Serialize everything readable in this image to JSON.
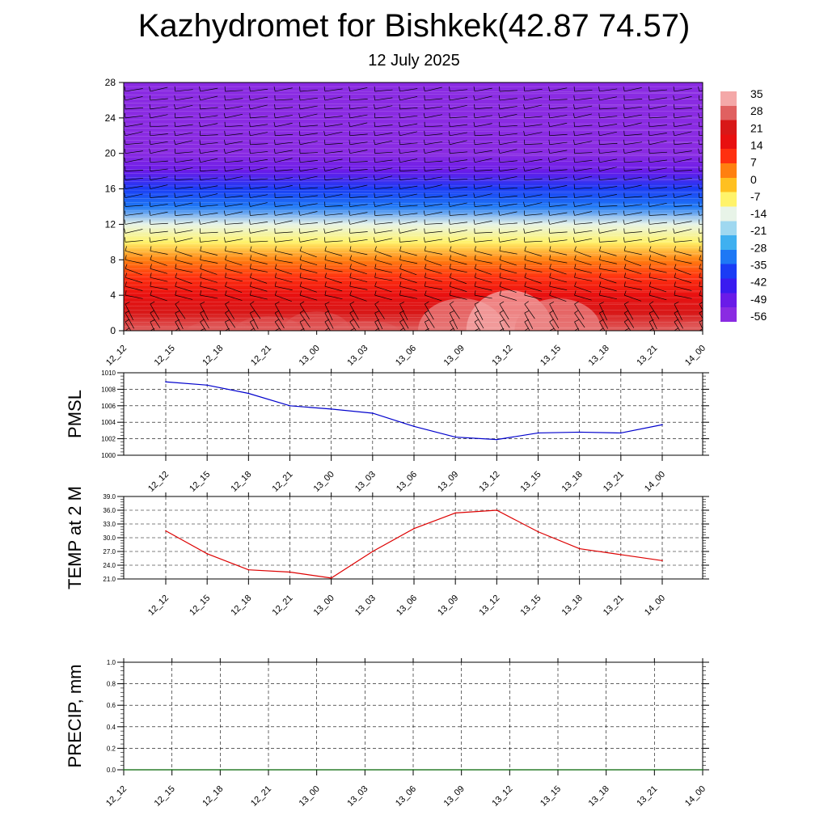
{
  "title": "Kazhydromet for Bishkek(42.87 74.57)",
  "subtitle": "12 July 2025",
  "chart_data": [
    {
      "type": "heatmap",
      "title": "",
      "x": [
        "12_12",
        "12_15",
        "12_18",
        "12_21",
        "13_00",
        "13_03",
        "13_06",
        "13_09",
        "13_12",
        "13_15",
        "13_18",
        "13_21",
        "14_00"
      ],
      "y_ticks": [
        0,
        4,
        8,
        12,
        16,
        20,
        24,
        28
      ],
      "ylim": [
        0,
        28
      ],
      "colorbar_labels": [
        "35",
        "28",
        "21",
        "14",
        "7",
        "0",
        "-7",
        "-14",
        "-21",
        "-28",
        "-35",
        "-42",
        "-49",
        "-56"
      ],
      "colorbar_range": [
        -60,
        38
      ],
      "temperature_profile": {
        "levels_km": [
          0,
          2,
          4,
          6,
          8,
          10,
          12,
          14,
          16,
          18,
          20,
          22,
          24,
          26,
          28
        ],
        "temp_c": [
          28,
          24,
          18,
          10,
          4,
          -5,
          -15,
          -30,
          -40,
          -48,
          -56,
          -60,
          -60,
          -58,
          -58
        ]
      },
      "surface_warming": [
        0,
        -1,
        -2,
        -3,
        -4,
        -2,
        1,
        4,
        5,
        4,
        1,
        -1,
        -2
      ],
      "wind_barbs": true
    },
    {
      "type": "line",
      "ylabel": "PMSL",
      "x": [
        "12_12",
        "12_15",
        "12_18",
        "12_21",
        "13_00",
        "13_03",
        "13_06",
        "13_09",
        "13_12",
        "13_15",
        "13_18",
        "13_21",
        "14_00"
      ],
      "yticks": [
        "1000",
        "1002",
        "1004",
        "1006",
        "1008",
        "1010"
      ],
      "ylim": [
        1000,
        1010
      ],
      "series": [
        {
          "color": "#0000cc",
          "values": [
            1008.9,
            1008.5,
            1007.5,
            1006.0,
            1005.6,
            1005.1,
            1003.5,
            1002.2,
            1001.9,
            1002.7,
            1002.8,
            1002.7,
            1003.7
          ]
        }
      ]
    },
    {
      "type": "line",
      "ylabel": "TEMP at 2 M",
      "x": [
        "12_12",
        "12_15",
        "12_18",
        "12_21",
        "13_00",
        "13_03",
        "13_06",
        "13_09",
        "13_12",
        "13_15",
        "13_18",
        "13_21",
        "14_00"
      ],
      "yticks": [
        "21.0",
        "24.0",
        "27.0",
        "30.0",
        "33.0",
        "36.0",
        "39.0"
      ],
      "ylim": [
        21,
        39
      ],
      "series": [
        {
          "color": "#dd0000",
          "values": [
            31.5,
            26.5,
            23.0,
            22.5,
            21.2,
            27.0,
            32.0,
            35.4,
            36.0,
            31.3,
            27.6,
            26.3,
            25.0
          ]
        }
      ]
    },
    {
      "type": "line",
      "ylabel": "PRECIP, mm",
      "x": [
        "12_12",
        "12_15",
        "12_18",
        "12_21",
        "13_00",
        "13_03",
        "13_06",
        "13_09",
        "13_12",
        "13_15",
        "13_18",
        "13_21",
        "14_00"
      ],
      "yticks": [
        "0.0",
        "0.2",
        "0.4",
        "0.6",
        "0.8",
        "1.0"
      ],
      "ylim": [
        0,
        1
      ],
      "series": [
        {
          "color": "#006400",
          "values": [
            0,
            0,
            0,
            0,
            0,
            0,
            0,
            0,
            0,
            0,
            0,
            0,
            0
          ]
        }
      ]
    }
  ],
  "colors": {
    "colormap": [
      "#8a2be2",
      "#6a1be8",
      "#3a1bf0",
      "#1a3cf5",
      "#1e78f5",
      "#3fb0f0",
      "#9fd8f0",
      "#e8f4e8",
      "#fff36a",
      "#ffc020",
      "#ff8010",
      "#ff3010",
      "#e81010",
      "#d81818",
      "#e06060",
      "#f4a8a8"
    ]
  }
}
